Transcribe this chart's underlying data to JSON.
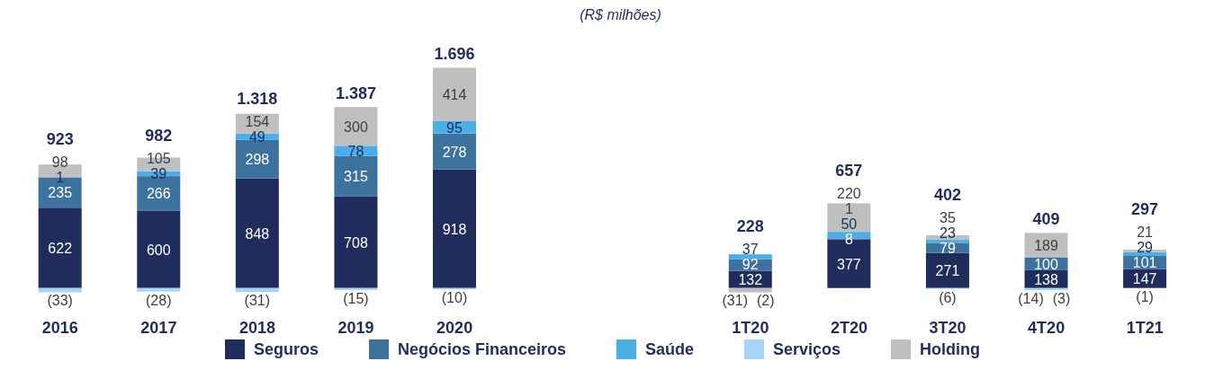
{
  "chart_data": {
    "type": "bar",
    "subtitle": "(R$ milhões)",
    "stacked": true,
    "legend": "bottom",
    "categories": [
      "2016",
      "2017",
      "2018",
      "2019",
      "2020",
      null,
      null,
      "1T20",
      "2T20",
      "3T20",
      "4T20",
      "1T21"
    ],
    "series": [
      {
        "name": "Seguros",
        "color": "#1f2c5c",
        "values": [
          622,
          600,
          848,
          708,
          918,
          null,
          null,
          132,
          377,
          271,
          138,
          147
        ],
        "value_labels": [
          "622",
          "600",
          "848",
          "708",
          "918",
          null,
          null,
          "132",
          "377",
          "271",
          "138",
          "147"
        ]
      },
      {
        "name": "Negócios Financeiros",
        "color": "#3e729e",
        "values": [
          235,
          266,
          298,
          315,
          278,
          null,
          null,
          92,
          8,
          79,
          100,
          101
        ],
        "value_labels": [
          "235",
          "266",
          "298",
          "315",
          "278",
          null,
          null,
          "92",
          "8",
          "79",
          "100",
          "101"
        ]
      },
      {
        "name": "Saúde",
        "color": "#4aaee8",
        "values": [
          1,
          39,
          49,
          78,
          95,
          null,
          null,
          37,
          50,
          23,
          -3,
          29
        ],
        "value_labels": [
          "1",
          "39",
          "49",
          "78",
          "95",
          null,
          null,
          "37",
          "50",
          "23",
          "(3)",
          "29"
        ]
      },
      {
        "name": "Serviços",
        "color": "#a6d5f5",
        "values": [
          -33,
          -28,
          -31,
          -15,
          -10,
          null,
          null,
          -2,
          1,
          -6,
          -14,
          -1
        ],
        "value_labels": [
          "(33)",
          "(28)",
          "(31)",
          "(15)",
          "(10)",
          null,
          null,
          "(2)",
          "1",
          "(6)",
          "(14)",
          "(1)"
        ]
      },
      {
        "name": "Holding",
        "color": "#bfbfbf",
        "values": [
          98,
          105,
          154,
          300,
          414,
          null,
          null,
          -31,
          220,
          35,
          189,
          21
        ],
        "value_labels": [
          "98",
          "105",
          "154",
          "300",
          "414",
          null,
          null,
          "(31)",
          "220",
          "35",
          "189",
          "21"
        ]
      }
    ],
    "totals": [
      "923",
      "982",
      "1.318",
      "1.387",
      "1.696",
      null,
      null,
      "228",
      "657",
      "402",
      "409",
      "297"
    ]
  }
}
